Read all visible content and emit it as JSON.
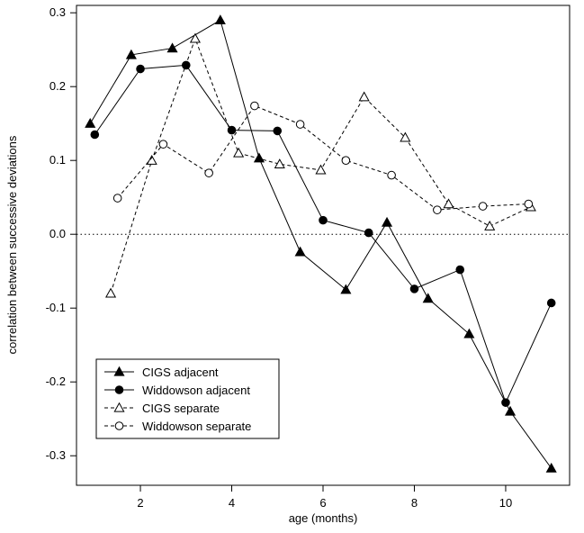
{
  "chart_data": {
    "type": "line",
    "title": "",
    "xlabel": "age (months)",
    "ylabel": "correlation between successive deviations",
    "xlim": [
      0.6,
      11.4
    ],
    "ylim": [
      -0.34,
      0.31
    ],
    "xticks": [
      2,
      4,
      6,
      8,
      10
    ],
    "yticks": [
      -0.3,
      -0.2,
      -0.1,
      0.0,
      0.1,
      0.2,
      0.3
    ],
    "ytick_labels": [
      "-0.3",
      "-0.2",
      "-0.1",
      "0.0",
      "0.1",
      "0.2",
      "0.3"
    ],
    "reference_line": {
      "y": 0.0,
      "style": "dotted"
    },
    "grid": false,
    "legend_position": "bottom-left",
    "series": [
      {
        "name": "CIGS adjacent",
        "marker": "filled-triangle",
        "line": "solid",
        "x": [
          0.9,
          1.8,
          2.7,
          3.75,
          4.6,
          5.5,
          6.5,
          7.4,
          8.3,
          9.2,
          10.1,
          11.0
        ],
        "y": [
          0.15,
          0.243,
          0.252,
          0.29,
          0.103,
          -0.024,
          -0.075,
          0.016,
          -0.087,
          -0.135,
          -0.24,
          -0.317
        ]
      },
      {
        "name": "Widdowson adjacent",
        "marker": "filled-circle",
        "line": "solid",
        "x": [
          1.0,
          2.0,
          3.0,
          4.0,
          5.0,
          6.0,
          7.0,
          8.0,
          9.0,
          10.0,
          11.0
        ],
        "y": [
          0.135,
          0.224,
          0.229,
          0.141,
          0.14,
          0.019,
          0.002,
          -0.074,
          -0.048,
          -0.228,
          -0.093
        ]
      },
      {
        "name": "CIGS separate",
        "marker": "open-triangle",
        "line": "dashed",
        "x": [
          1.35,
          2.25,
          3.2,
          4.15,
          5.05,
          5.95,
          6.9,
          7.8,
          8.75,
          9.65,
          10.55
        ],
        "y": [
          -0.08,
          0.1,
          0.265,
          0.11,
          0.095,
          0.087,
          0.186,
          0.131,
          0.041,
          0.011,
          0.037
        ]
      },
      {
        "name": "Widdowson separate",
        "marker": "open-circle",
        "line": "dashed",
        "x": [
          1.5,
          2.5,
          3.5,
          4.5,
          5.5,
          6.5,
          7.5,
          8.5,
          9.5,
          10.5
        ],
        "y": [
          0.049,
          0.122,
          0.083,
          0.174,
          0.149,
          0.1,
          0.08,
          0.033,
          0.038,
          0.041
        ]
      }
    ]
  }
}
